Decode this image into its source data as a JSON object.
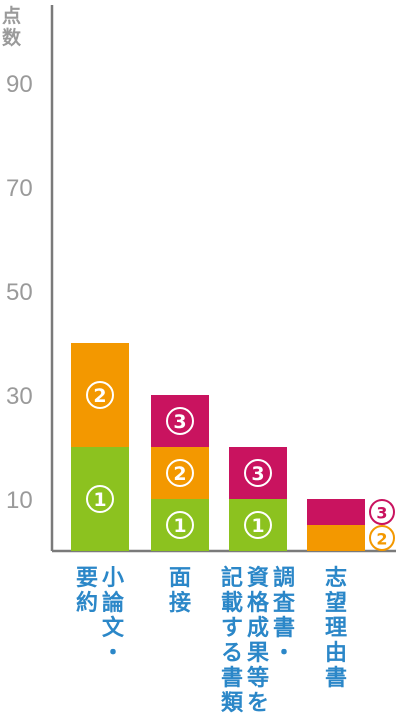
{
  "chart_data": {
    "type": "bar",
    "stacked": true,
    "ylabel": "点数",
    "yticks": [
      10,
      30,
      50,
      70,
      90
    ],
    "ylim": [
      0,
      100
    ],
    "grid": false,
    "colors": {
      "1": "#8cc21f",
      "2": "#f39800",
      "3": "#c9135f",
      "axis": "#7a7a7a",
      "label": "#2b87c8"
    },
    "categories": [
      {
        "label_columns": [
          "小論文・",
          "要約"
        ],
        "segments": [
          {
            "mark": "①",
            "level": "1",
            "value": 20
          },
          {
            "mark": "②",
            "level": "2",
            "value": 20
          }
        ]
      },
      {
        "label_columns": [
          "面接"
        ],
        "segments": [
          {
            "mark": "①",
            "level": "1",
            "value": 10
          },
          {
            "mark": "②",
            "level": "2",
            "value": 10
          },
          {
            "mark": "③",
            "level": "3",
            "value": 10
          }
        ]
      },
      {
        "label_columns": [
          "調査書・",
          "資格成果等を",
          "記載する書類"
        ],
        "segments": [
          {
            "mark": "①",
            "level": "1",
            "value": 10
          },
          {
            "mark": "③",
            "level": "3",
            "value": 10
          }
        ]
      },
      {
        "label_columns": [
          "志望理由書"
        ],
        "segments": [
          {
            "mark": "②",
            "level": "2",
            "value": 5
          },
          {
            "mark": "③",
            "level": "3",
            "value": 5
          }
        ],
        "outside_marks": true
      }
    ]
  }
}
